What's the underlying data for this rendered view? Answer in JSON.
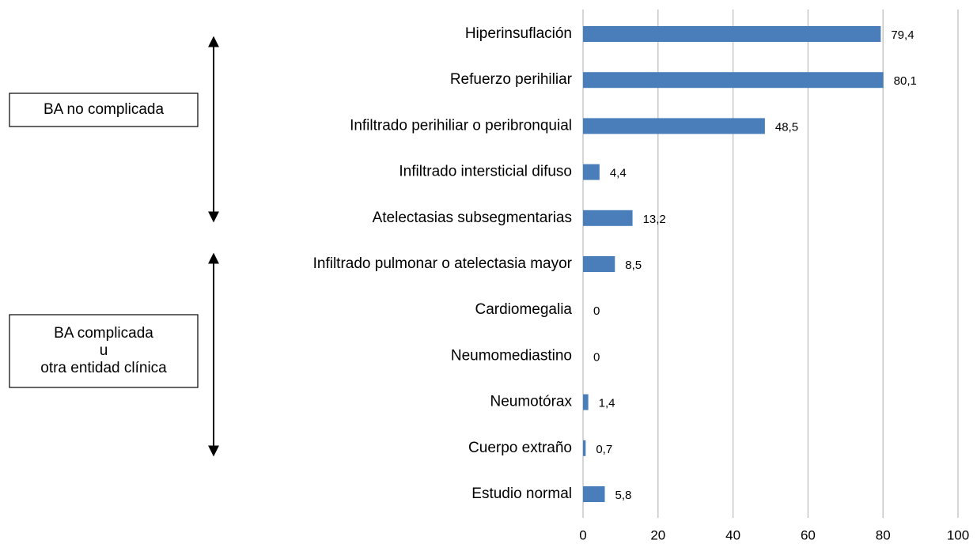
{
  "chart_data": {
    "type": "bar",
    "orientation": "horizontal",
    "categories": [
      "Hiperinsuflación",
      "Refuerzo perihiliar",
      "Infiltrado perihiliar o peribronquial",
      "Infiltrado intersticial difuso",
      "Atelectasias subsegmentarias",
      "Infiltrado pulmonar o atelectasia mayor",
      "Cardiomegalia",
      "Neumomediastino",
      "Neumotórax",
      "Cuerpo extraño",
      "Estudio normal"
    ],
    "values": [
      79.4,
      80.1,
      48.5,
      4.4,
      13.2,
      8.5,
      0,
      0,
      1.4,
      0.7,
      5.8
    ],
    "value_labels": [
      "79,4",
      "80,1",
      "48,5",
      "4,4",
      "13,2",
      "8,5",
      "0",
      "0",
      "1,4",
      "0,7",
      "5,8"
    ],
    "color": "#4a7ebb",
    "xlim": [
      0,
      100
    ],
    "xticks": [
      0,
      20,
      40,
      60,
      80,
      100
    ],
    "grid": true,
    "annotations": [
      {
        "lines": [
          "BA no complicada"
        ]
      },
      {
        "lines": [
          "BA complicada",
          "u",
          "otra entidad clínica"
        ]
      }
    ]
  }
}
